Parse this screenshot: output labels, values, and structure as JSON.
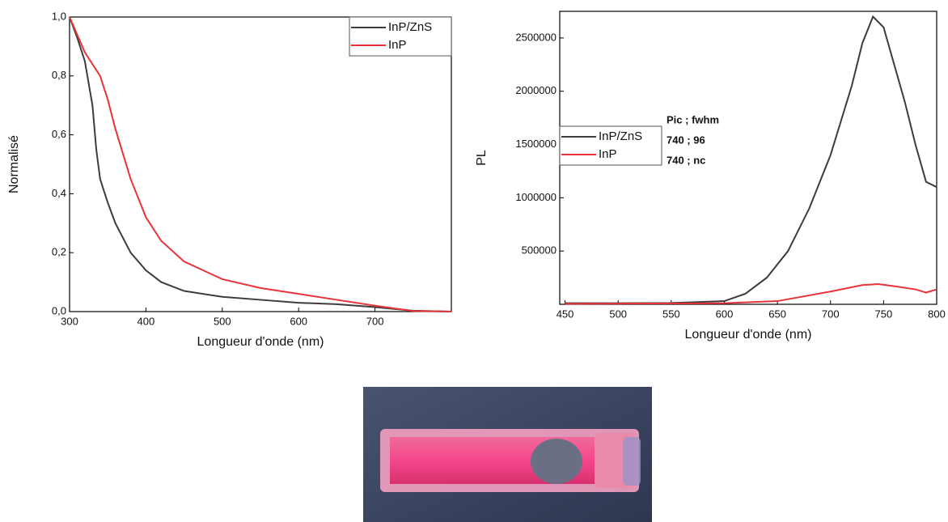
{
  "chart_data": [
    {
      "type": "line",
      "xlabel": "Longueur d'onde (nm)",
      "ylabel": "Normalisé",
      "xlim": [
        300,
        800
      ],
      "ylim": [
        0,
        1
      ],
      "xticks": [
        300,
        400,
        500,
        600,
        700
      ],
      "yticks": [
        {
          "value": 0,
          "label": "0,0"
        },
        {
          "value": 0.2,
          "label": "0,2"
        },
        {
          "value": 0.4,
          "label": "0,4"
        },
        {
          "value": 0.6,
          "label": "0,6"
        },
        {
          "value": 0.8,
          "label": "0,8"
        },
        {
          "value": 1,
          "label": "1,0"
        }
      ],
      "legend": "upper right",
      "series": [
        {
          "name": "InP/ZnS",
          "color": "#3c3c3c",
          "x": [
            300,
            310,
            320,
            330,
            335,
            340,
            350,
            360,
            380,
            400,
            420,
            450,
            500,
            550,
            600,
            650,
            700,
            750,
            800
          ],
          "values": [
            1.0,
            0.93,
            0.85,
            0.7,
            0.55,
            0.45,
            0.37,
            0.3,
            0.2,
            0.14,
            0.1,
            0.07,
            0.05,
            0.04,
            0.03,
            0.025,
            0.015,
            0.003,
            0
          ]
        },
        {
          "name": "InP",
          "color": "#e8333a",
          "x": [
            300,
            320,
            340,
            350,
            360,
            380,
            400,
            420,
            450,
            500,
            550,
            600,
            650,
            700,
            750,
            800
          ],
          "values": [
            1.0,
            0.88,
            0.8,
            0.72,
            0.62,
            0.45,
            0.32,
            0.24,
            0.17,
            0.11,
            0.08,
            0.06,
            0.04,
            0.02,
            0.002,
            0
          ]
        }
      ]
    },
    {
      "type": "line",
      "xlabel": "Longueur d'onde (nm)",
      "ylabel": "PL",
      "xlim": [
        445,
        800
      ],
      "ylim": [
        0,
        2750000
      ],
      "xticks": [
        450,
        500,
        550,
        600,
        650,
        700,
        750,
        800
      ],
      "yticks": [
        500000,
        1000000,
        1500000,
        2000000,
        2500000
      ],
      "legend": "center left",
      "annotations": [
        "Pic ; fwhm",
        "740 ; 96",
        "740 ; nc"
      ],
      "series": [
        {
          "name": "InP/ZnS",
          "color": "#3c3c3c",
          "x": [
            450,
            500,
            550,
            600,
            620,
            640,
            660,
            680,
            700,
            720,
            730,
            740,
            750,
            760,
            770,
            780,
            790,
            800
          ],
          "values": [
            10000,
            10000,
            12000,
            30000,
            100000,
            250000,
            500000,
            900000,
            1400000,
            2050000,
            2450000,
            2700000,
            2600000,
            2250000,
            1900000,
            1500000,
            1150000,
            1100000
          ]
        },
        {
          "name": "InP",
          "color": "#e8333a",
          "x": [
            450,
            600,
            650,
            700,
            730,
            745,
            760,
            780,
            790,
            800
          ],
          "values": [
            5000,
            10000,
            30000,
            120000,
            180000,
            190000,
            170000,
            140000,
            110000,
            140000
          ]
        }
      ]
    }
  ]
}
